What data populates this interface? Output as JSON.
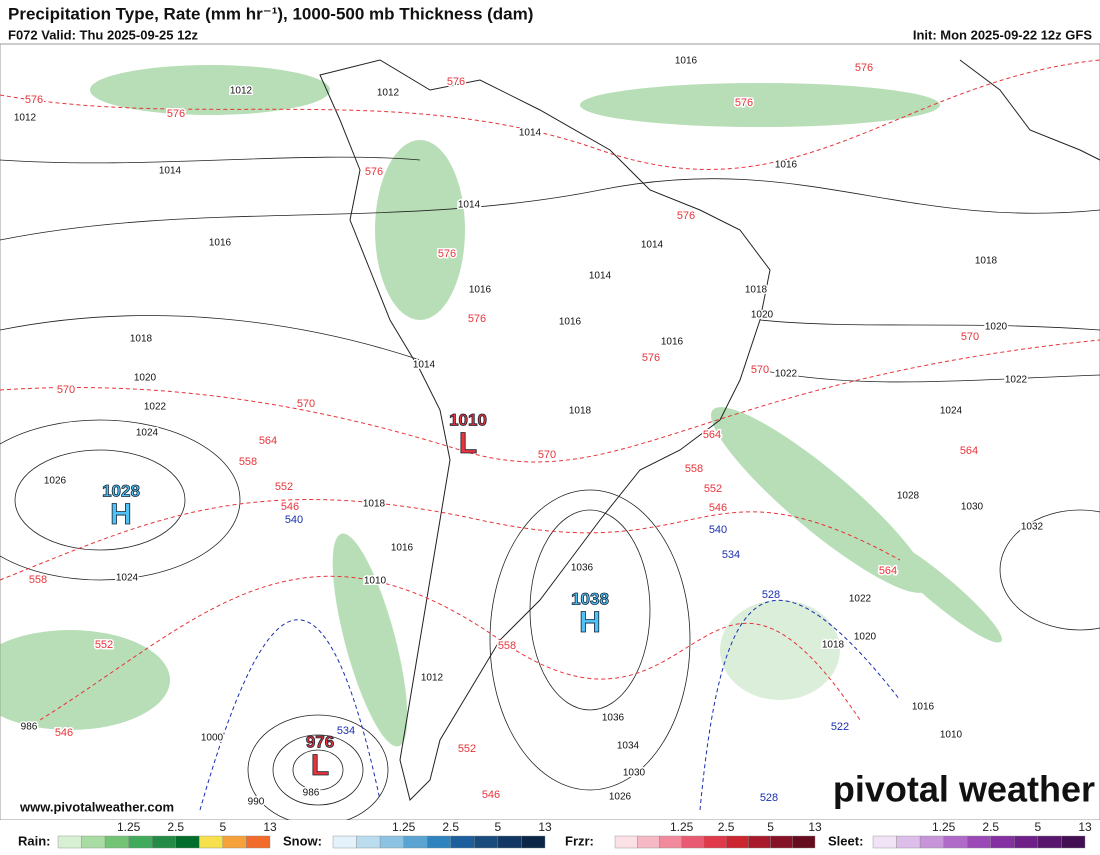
{
  "header": {
    "title": "Precipitation Type, Rate (mm hr⁻¹), 1000-500 mb Thickness (dam)",
    "valid": "F072 Valid: Thu 2025-09-25 12z",
    "init": "Init: Mon 2025-09-22 12z GFS"
  },
  "centers": [
    {
      "value": "1028",
      "letter": "H"
    },
    {
      "value": "1010",
      "letter": "L"
    },
    {
      "value": "1038",
      "letter": "H"
    },
    {
      "value": "976",
      "letter": "L"
    }
  ],
  "isobar_labels": [
    "1016",
    "1012",
    "1012",
    "1012",
    "1014",
    "1014",
    "1016",
    "1014",
    "1016",
    "1014",
    "1014",
    "1018",
    "1018",
    "1016",
    "1016",
    "1020",
    "1016",
    "1018",
    "1020",
    "1014",
    "1022",
    "1022",
    "1020",
    "1022",
    "1018",
    "1024",
    "1024",
    "1026",
    "1028",
    "1030",
    "1032",
    "1018",
    "1016",
    "1036",
    "1010",
    "1024",
    "1022",
    "1020",
    "1018",
    "1012",
    "1016",
    "1010",
    "986",
    "1036",
    "1034",
    "1030",
    "1026",
    "990",
    "986",
    "1000"
  ],
  "thickness_labels": [
    "576",
    "576",
    "576",
    "576",
    "576",
    "576",
    "576",
    "576",
    "576",
    "576",
    "570",
    "570",
    "570",
    "570",
    "570",
    "564",
    "564",
    "564",
    "564",
    "558",
    "558",
    "558",
    "558",
    "552",
    "552",
    "552",
    "552",
    "546",
    "546",
    "546",
    "546"
  ],
  "thickness_labels_cold": [
    "540",
    "540",
    "534",
    "534",
    "528",
    "528",
    "522"
  ],
  "legend": [
    {
      "label": "Rain:",
      "ticks": [
        "1.25",
        "2.5",
        "5",
        "13"
      ]
    },
    {
      "label": "Snow:",
      "ticks": [
        "1.25",
        "2.5",
        "5",
        "13"
      ]
    },
    {
      "label": "Frzr:",
      "ticks": [
        "1.25",
        "2.5",
        "5",
        "13"
      ]
    },
    {
      "label": "Sleet:",
      "ticks": [
        "1.25",
        "2.5",
        "5",
        "13"
      ]
    }
  ],
  "watermark": "www.pivotalweather.com",
  "logo": "pivotal weather"
}
